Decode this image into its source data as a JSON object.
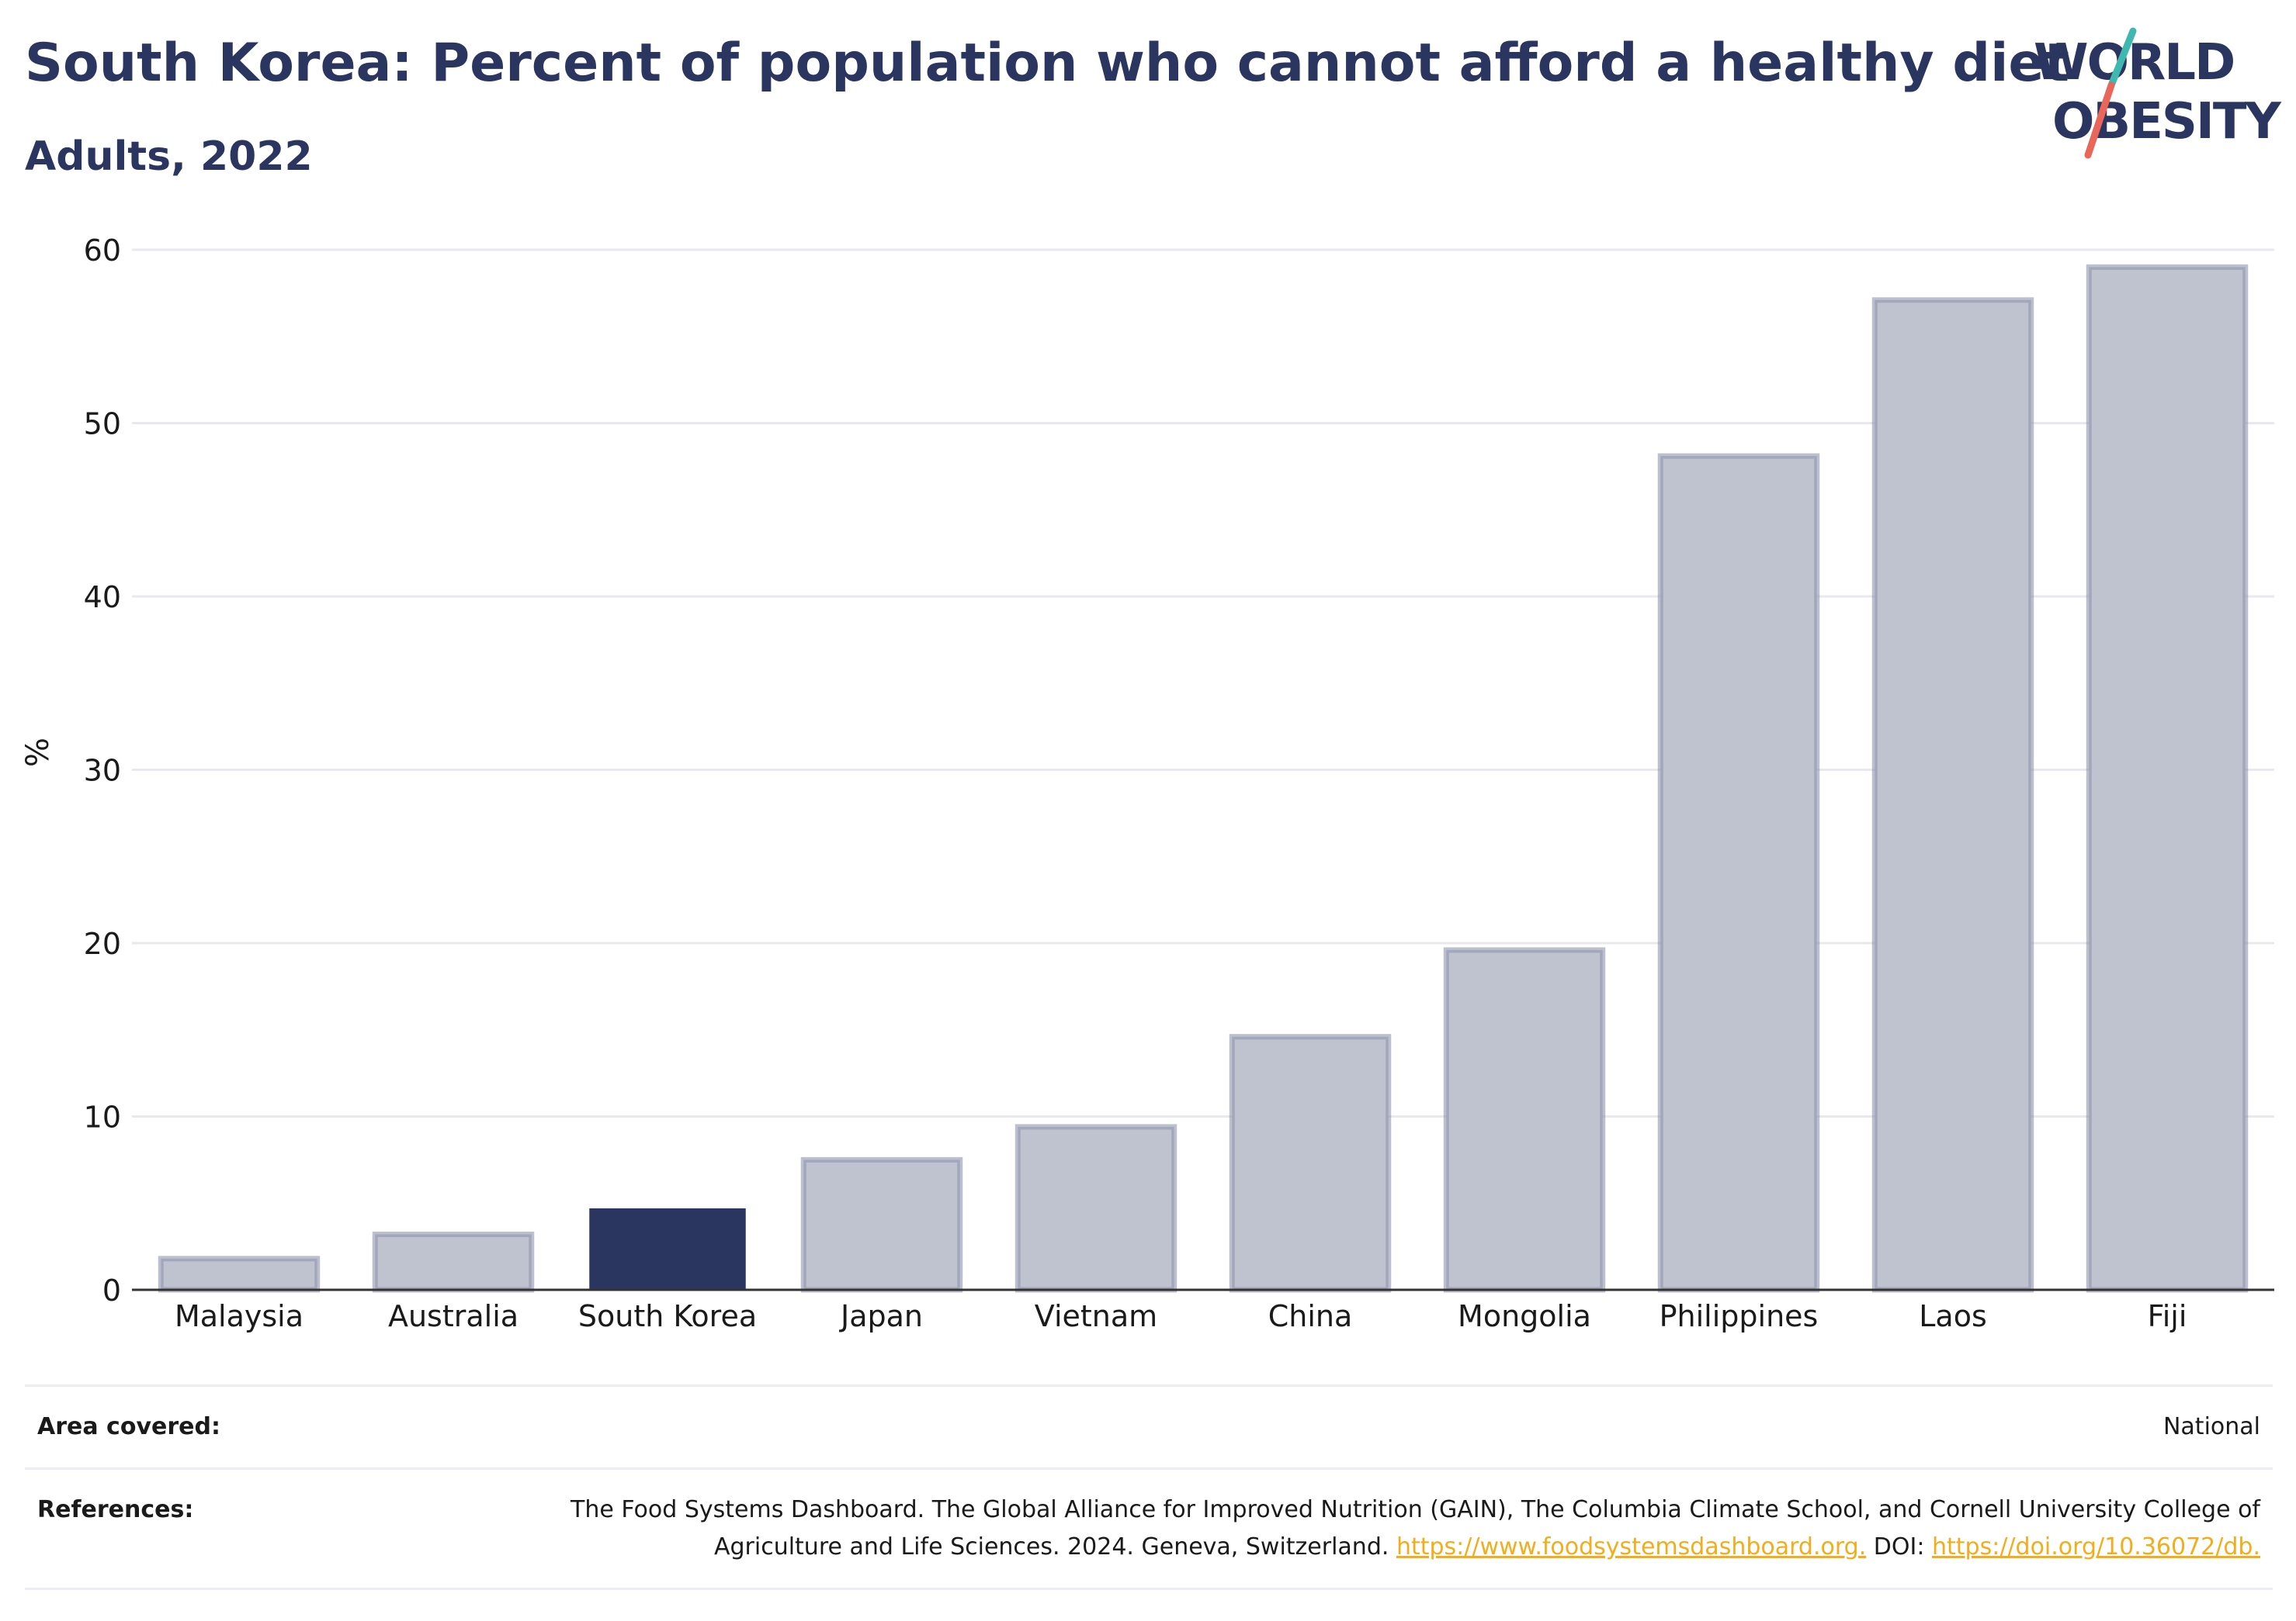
{
  "header": {
    "title": "South Korea: Percent of population who cannot afford a healthy diet",
    "subtitle": "Adults, 2022"
  },
  "logo": {
    "line1": "WORLD",
    "line2": "OBESITY",
    "slash_colors": [
      "#3fb8b0",
      "#e8665a"
    ]
  },
  "colors": {
    "highlight": "#2a3560",
    "bar_fill": "#bfc2cf",
    "bar_stroke": "#8f95ab",
    "grid": "#e8e8ee",
    "axis": "#333333"
  },
  "chart_data": {
    "type": "bar",
    "categories": [
      "Malaysia",
      "Australia",
      "South Korea",
      "Japan",
      "Vietnam",
      "China",
      "Mongolia",
      "Philippines",
      "Laos",
      "Fiji"
    ],
    "values": [
      1.8,
      3.2,
      4.7,
      7.5,
      9.4,
      14.6,
      19.6,
      48.1,
      57.1,
      59.0
    ],
    "highlight": "South Korea",
    "ylabel": "%",
    "xlabel": "",
    "ylim": [
      0,
      60
    ],
    "yticks": [
      0,
      10,
      20,
      30,
      40,
      50,
      60
    ],
    "grid": true,
    "legend": "none"
  },
  "footer": {
    "area_label": "Area covered:",
    "area_value": "National",
    "references_label": "References:",
    "references_text": "The Food Systems Dashboard. The Global Alliance for Improved Nutrition (GAIN), The Columbia Climate School, and Cornell University College of Agriculture and Life Sciences. 2024. Geneva, Switzerland. ",
    "references_link1": "https://www.foodsystemsdashboard.org.",
    "references_mid": " DOI: ",
    "references_link2": "https://doi.org/10.36072/db."
  }
}
